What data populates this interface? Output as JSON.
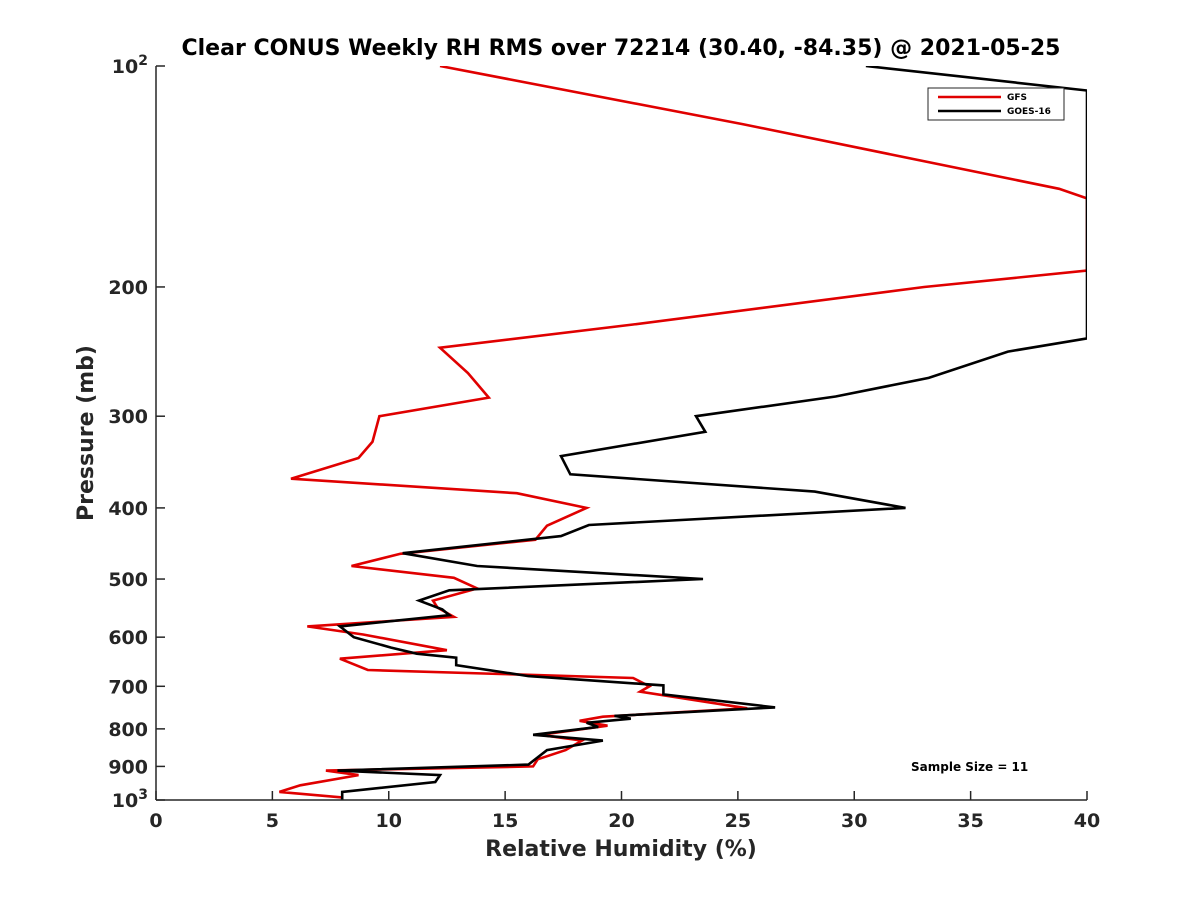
{
  "chart_data": {
    "type": "line",
    "title": "Clear CONUS Weekly RH RMS over 72214 (30.40, -84.35) @ 2021-05-25",
    "xlabel": "Relative Humidity (%)",
    "ylabel": "Pressure (mb)",
    "xlim": [
      0,
      40
    ],
    "ylim": [
      1000,
      100
    ],
    "yscale": "log",
    "x_ticks": [
      0,
      5,
      10,
      15,
      20,
      25,
      30,
      35,
      40
    ],
    "x_tick_labels": [
      "0",
      "5",
      "10",
      "15",
      "20",
      "25",
      "30",
      "35",
      "40"
    ],
    "y_ticks": [
      100,
      200,
      300,
      400,
      500,
      600,
      700,
      800,
      900,
      1000
    ],
    "y_tick_labels": [
      {
        "base": "10",
        "exp": "2"
      },
      {
        "base": "200",
        "exp": ""
      },
      {
        "base": "300",
        "exp": ""
      },
      {
        "base": "400",
        "exp": ""
      },
      {
        "base": "500",
        "exp": ""
      },
      {
        "base": "600",
        "exp": ""
      },
      {
        "base": "700",
        "exp": ""
      },
      {
        "base": "800",
        "exp": ""
      },
      {
        "base": "900",
        "exp": ""
      },
      {
        "base": "10",
        "exp": "3"
      }
    ],
    "legend_position": "top-right",
    "annotation": "Sample Size = 11",
    "series": [
      {
        "name": "GFS",
        "color": "#e00000",
        "points": [
          [
            12.2,
            100
          ],
          [
            25.2,
            120
          ],
          [
            38.8,
            147
          ],
          [
            40.0,
            151.5
          ],
          [
            40.0,
            190
          ],
          [
            33.0,
            200
          ],
          [
            20.5,
            225
          ],
          [
            12.2,
            242
          ],
          [
            13.4,
            262
          ],
          [
            14.3,
            283
          ],
          [
            9.6,
            300
          ],
          [
            9.3,
            325
          ],
          [
            8.7,
            342
          ],
          [
            5.8,
            365
          ],
          [
            15.5,
            382
          ],
          [
            18.5,
            400
          ],
          [
            16.8,
            423
          ],
          [
            16.3,
            442
          ],
          [
            10.5,
            462
          ],
          [
            8.4,
            480
          ],
          [
            12.8,
            498
          ],
          [
            13.8,
            515
          ],
          [
            11.9,
            535
          ],
          [
            12.1,
            547
          ],
          [
            12.8,
            563
          ],
          [
            6.5,
            580
          ],
          [
            8.9,
            595
          ],
          [
            12.5,
            625
          ],
          [
            7.9,
            642
          ],
          [
            9.1,
            665
          ],
          [
            20.5,
            682
          ],
          [
            21.2,
            700
          ],
          [
            20.8,
            712
          ],
          [
            25.4,
            750
          ],
          [
            19.2,
            770
          ],
          [
            18.2,
            780
          ],
          [
            19.4,
            792
          ],
          [
            16.5,
            815
          ],
          [
            18.3,
            830
          ],
          [
            17.6,
            855
          ],
          [
            16.4,
            880
          ],
          [
            16.2,
            900
          ],
          [
            7.3,
            912
          ],
          [
            8.7,
            925
          ],
          [
            6.2,
            955
          ],
          [
            5.3,
            975
          ],
          [
            8.0,
            992
          ],
          [
            8.0,
            1000
          ]
        ]
      },
      {
        "name": "GOES-16",
        "color": "#000000",
        "points": [
          [
            30.5,
            100
          ],
          [
            40.0,
            108
          ],
          [
            40.0,
            235
          ],
          [
            36.6,
            245
          ],
          [
            33.2,
            266
          ],
          [
            29.2,
            282
          ],
          [
            23.2,
            300
          ],
          [
            23.6,
            315
          ],
          [
            17.4,
            340
          ],
          [
            17.8,
            360
          ],
          [
            28.3,
            380
          ],
          [
            32.2,
            400
          ],
          [
            18.6,
            422
          ],
          [
            17.4,
            437
          ],
          [
            10.6,
            461
          ],
          [
            13.8,
            480
          ],
          [
            23.5,
            500
          ],
          [
            12.6,
            518
          ],
          [
            11.3,
            535
          ],
          [
            12.3,
            550
          ],
          [
            12.6,
            560
          ],
          [
            7.9,
            580
          ],
          [
            8.5,
            600
          ],
          [
            10.1,
            620
          ],
          [
            11.2,
            632
          ],
          [
            12.9,
            640
          ],
          [
            12.9,
            655
          ],
          [
            16.0,
            678
          ],
          [
            21.8,
            698
          ],
          [
            21.8,
            718
          ],
          [
            26.6,
            748
          ],
          [
            19.7,
            768
          ],
          [
            20.4,
            775
          ],
          [
            18.5,
            785
          ],
          [
            19.0,
            795
          ],
          [
            16.2,
            815
          ],
          [
            19.2,
            830
          ],
          [
            16.8,
            855
          ],
          [
            16.0,
            895
          ],
          [
            7.8,
            912
          ],
          [
            12.2,
            925
          ],
          [
            12.0,
            945
          ],
          [
            8.0,
            975
          ],
          [
            8.0,
            1000
          ]
        ]
      }
    ]
  }
}
